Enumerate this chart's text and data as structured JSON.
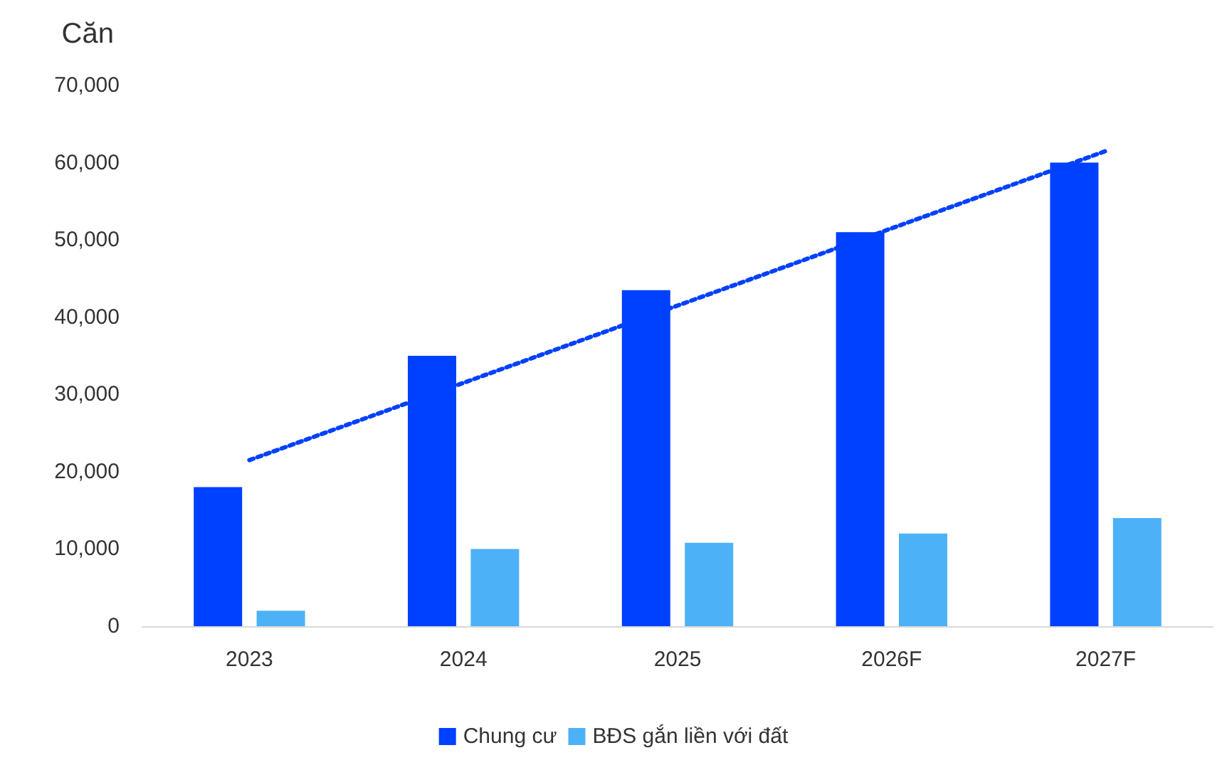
{
  "chart_data": {
    "type": "bar",
    "ylabel": "Căn",
    "categories": [
      "2023",
      "2024",
      "2025",
      "2026F",
      "2027F"
    ],
    "series": [
      {
        "name": "Chung cư",
        "color": "#0040ff",
        "values": [
          18000,
          35000,
          43500,
          51000,
          60000
        ]
      },
      {
        "name": "BĐS gắn liền với đất",
        "color": "#4db1f7",
        "values": [
          2000,
          10000,
          10800,
          12000,
          14000
        ]
      },
      {
        "type": "line",
        "color": "#0040ff",
        "values": [
          21500,
          null,
          null,
          null,
          61500
        ],
        "line_style": "dotted",
        "marker": "none"
      }
    ],
    "ylim": [
      0,
      70000
    ],
    "yticks": [
      0,
      {
        "value": 10000,
        "label": "10,000"
      },
      {
        "value": 20000,
        "label": "20,000"
      },
      {
        "value": 30000,
        "label": "30,000"
      },
      {
        "value": 40000,
        "label": "40,000"
      },
      {
        "value": 50000,
        "label": "50,000"
      },
      {
        "value": 60000,
        "label": "60,000"
      },
      {
        "value": 70000,
        "label": "70,000"
      }
    ],
    "grid": false,
    "legend": "bottom"
  }
}
